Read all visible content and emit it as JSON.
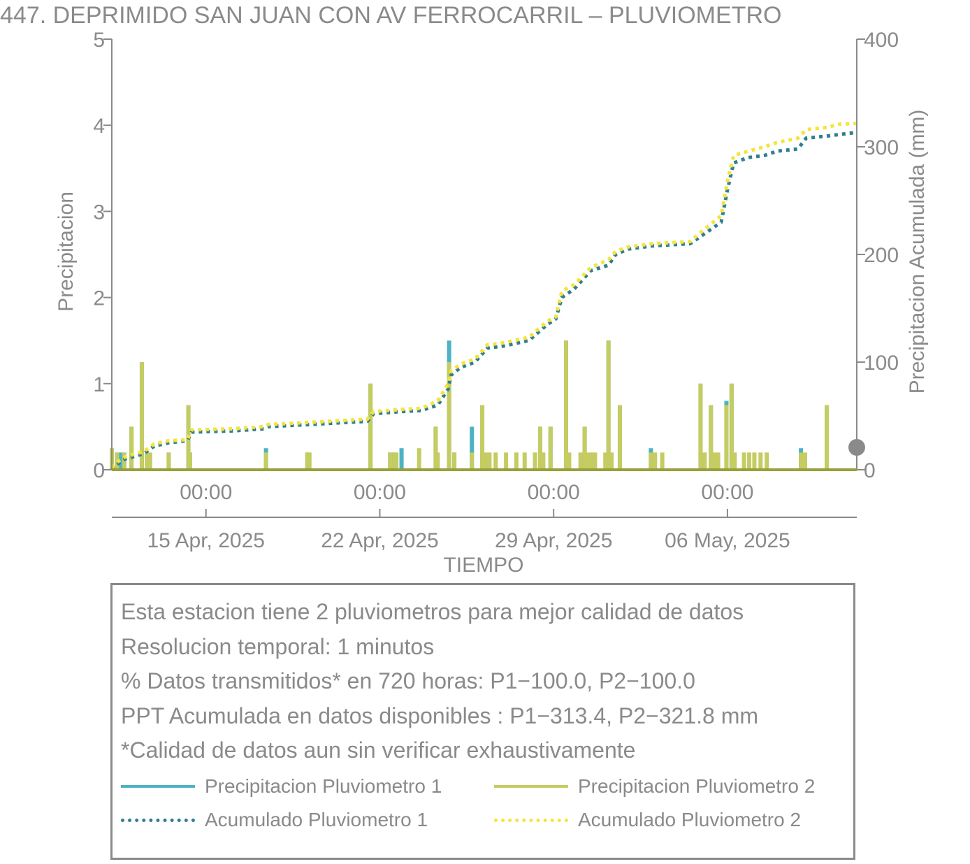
{
  "chart_data": {
    "type": "bar",
    "title": "447. DEPRIMIDO SAN JUAN CON AV FERROCARRIL – PLUVIOMETRO",
    "xlabel": "TIEMPO",
    "ylabel": "Precipitacion",
    "ylabel_right": "Precipitacion Acumulada (mm)",
    "x_range": [
      "2025-04-11T05:00",
      "2025-05-11T05:00"
    ],
    "ylim": [
      0,
      5
    ],
    "ylim_right": [
      0,
      400
    ],
    "y_ticks": [
      "0",
      "1",
      "2",
      "3",
      "4",
      "5"
    ],
    "y_right_ticks": [
      "0",
      "100",
      "200",
      "300",
      "400"
    ],
    "x_ticks_time": [
      "00:00",
      "00:00",
      "00:00",
      "00:00"
    ],
    "x_ticks_date": [
      "15 Apr, 2025",
      "22 Apr, 2025",
      "29 Apr, 2025",
      "06 May, 2025"
    ],
    "x_tick_dates": [
      "2025-04-15T00:00",
      "2025-04-22T00:00",
      "2025-04-29T00:00",
      "2025-05-06T00:00"
    ],
    "grid": false,
    "colors": {
      "p1": "#4db3c4",
      "p2": "#c4cc62",
      "acc1": "#2f7f8f",
      "acc2": "#f5e43a",
      "axis": "#8a8a8a"
    },
    "series": [
      {
        "name": "Precipitacion Pluviometro 1",
        "kind": "bar",
        "points": [
          [
            "2025-04-11T05:00",
            0.2
          ],
          [
            "2025-04-11T10:00",
            0.2
          ],
          [
            "2025-04-11T14:00",
            0.2
          ],
          [
            "2025-04-11T17:00",
            0.2
          ],
          [
            "2025-04-12T00:00",
            0.5
          ],
          [
            "2025-04-12T10:00",
            1.25
          ],
          [
            "2025-04-12T15:00",
            0.2
          ],
          [
            "2025-04-13T12:00",
            0.2
          ],
          [
            "2025-04-14T07:00",
            0.75
          ],
          [
            "2025-04-14T08:30",
            0.2
          ],
          [
            "2025-04-17T10:00",
            0.25
          ],
          [
            "2025-04-19T02:00",
            0.2
          ],
          [
            "2025-04-21T15:00",
            1.0
          ],
          [
            "2025-04-22T10:00",
            0.2
          ],
          [
            "2025-04-22T14:00",
            0.2
          ],
          [
            "2025-04-22T21:00",
            0.25
          ],
          [
            "2025-04-24T06:00",
            0.5
          ],
          [
            "2025-04-24T19:00",
            1.5
          ],
          [
            "2025-04-25T00:00",
            0.2
          ],
          [
            "2025-04-25T17:00",
            0.5
          ],
          [
            "2025-04-26T03:00",
            0.75
          ],
          [
            "2025-04-28T11:00",
            0.5
          ],
          [
            "2025-04-28T21:00",
            0.5
          ],
          [
            "2025-04-29T12:00",
            1.5
          ],
          [
            "2025-04-30T06:00",
            0.5
          ],
          [
            "2025-05-01T05:00",
            1.5
          ],
          [
            "2025-05-01T16:00",
            0.75
          ],
          [
            "2025-05-02T22:00",
            0.25
          ],
          [
            "2025-05-04T22:00",
            1.0
          ],
          [
            "2025-05-05T08:00",
            0.75
          ],
          [
            "2025-05-05T23:00",
            0.8
          ],
          [
            "2025-05-06T04:00",
            1.0
          ],
          [
            "2025-05-08T23:00",
            0.25
          ],
          [
            "2025-05-10T00:00",
            0.75
          ]
        ]
      },
      {
        "name": "Precipitacion Pluviometro 2",
        "kind": "bar",
        "points": [
          [
            "2025-04-11T05:00",
            0.25
          ],
          [
            "2025-04-11T10:00",
            0.2
          ],
          [
            "2025-04-11T17:00",
            0.2
          ],
          [
            "2025-04-12T00:00",
            0.5
          ],
          [
            "2025-04-12T10:00",
            1.25
          ],
          [
            "2025-04-12T15:00",
            0.2
          ],
          [
            "2025-04-12T18:00",
            0.2
          ],
          [
            "2025-04-13T12:00",
            0.2
          ],
          [
            "2025-04-14T07:00",
            0.75
          ],
          [
            "2025-04-14T08:30",
            0.2
          ],
          [
            "2025-04-17T10:00",
            0.2
          ],
          [
            "2025-04-19T02:00",
            0.2
          ],
          [
            "2025-04-19T04:00",
            0.2
          ],
          [
            "2025-04-21T15:00",
            1.0
          ],
          [
            "2025-04-22T10:00",
            0.2
          ],
          [
            "2025-04-22T14:00",
            0.2
          ],
          [
            "2025-04-22T16:00",
            0.2
          ],
          [
            "2025-04-23T14:00",
            0.25
          ],
          [
            "2025-04-24T06:00",
            0.5
          ],
          [
            "2025-04-24T08:00",
            0.2
          ],
          [
            "2025-04-24T19:00",
            1.25
          ],
          [
            "2025-04-25T00:00",
            0.2
          ],
          [
            "2025-04-25T17:00",
            0.2
          ],
          [
            "2025-04-26T03:00",
            0.75
          ],
          [
            "2025-04-26T06:00",
            0.2
          ],
          [
            "2025-04-26T10:00",
            0.2
          ],
          [
            "2025-04-26T16:00",
            0.2
          ],
          [
            "2025-04-27T02:00",
            0.2
          ],
          [
            "2025-04-27T12:00",
            0.2
          ],
          [
            "2025-04-27T20:00",
            0.2
          ],
          [
            "2025-04-28T06:00",
            0.2
          ],
          [
            "2025-04-28T11:00",
            0.5
          ],
          [
            "2025-04-28T14:00",
            0.2
          ],
          [
            "2025-04-28T21:00",
            0.5
          ],
          [
            "2025-04-29T12:00",
            1.5
          ],
          [
            "2025-04-29T15:00",
            0.2
          ],
          [
            "2025-04-30T02:00",
            0.2
          ],
          [
            "2025-04-30T06:00",
            0.5
          ],
          [
            "2025-04-30T09:00",
            0.2
          ],
          [
            "2025-04-30T13:00",
            0.2
          ],
          [
            "2025-04-30T16:00",
            0.2
          ],
          [
            "2025-05-01T02:00",
            0.2
          ],
          [
            "2025-05-01T05:00",
            1.5
          ],
          [
            "2025-05-01T08:00",
            0.2
          ],
          [
            "2025-05-01T16:00",
            0.75
          ],
          [
            "2025-05-02T22:00",
            0.2
          ],
          [
            "2025-05-03T02:00",
            0.2
          ],
          [
            "2025-05-03T09:00",
            0.2
          ],
          [
            "2025-05-04T22:00",
            1.0
          ],
          [
            "2025-05-05T02:00",
            0.2
          ],
          [
            "2025-05-05T08:00",
            0.75
          ],
          [
            "2025-05-05T11:00",
            0.2
          ],
          [
            "2025-05-05T15:00",
            0.2
          ],
          [
            "2025-05-05T23:00",
            0.75
          ],
          [
            "2025-05-06T04:00",
            1.0
          ],
          [
            "2025-05-06T07:00",
            0.2
          ],
          [
            "2025-05-06T16:00",
            0.2
          ],
          [
            "2025-05-06T21:00",
            0.2
          ],
          [
            "2025-05-07T02:00",
            0.2
          ],
          [
            "2025-05-07T08:00",
            0.2
          ],
          [
            "2025-05-07T14:00",
            0.2
          ],
          [
            "2025-05-08T23:00",
            0.2
          ],
          [
            "2025-05-09T03:00",
            0.2
          ],
          [
            "2025-05-10T00:00",
            0.75
          ]
        ]
      },
      {
        "name": "Acumulado Pluviometro 1",
        "kind": "line",
        "points": [
          [
            "2025-04-11T05:00",
            0
          ],
          [
            "2025-04-11T10:00",
            5
          ],
          [
            "2025-04-11T18:00",
            10
          ],
          [
            "2025-04-12T12:00",
            15
          ],
          [
            "2025-04-12T22:00",
            22
          ],
          [
            "2025-04-13T12:00",
            25
          ],
          [
            "2025-04-14T06:00",
            27
          ],
          [
            "2025-04-14T10:00",
            35
          ],
          [
            "2025-04-16T00:00",
            36
          ],
          [
            "2025-04-17T08:00",
            38
          ],
          [
            "2025-04-17T12:00",
            40
          ],
          [
            "2025-04-19T04:00",
            42
          ],
          [
            "2025-04-21T12:00",
            45
          ],
          [
            "2025-04-21T18:00",
            52
          ],
          [
            "2025-04-22T20:00",
            54
          ],
          [
            "2025-04-23T16:00",
            55
          ],
          [
            "2025-04-24T08:00",
            60
          ],
          [
            "2025-04-24T18:00",
            75
          ],
          [
            "2025-04-24T21:00",
            88
          ],
          [
            "2025-04-25T06:00",
            95
          ],
          [
            "2025-04-25T20:00",
            100
          ],
          [
            "2025-04-26T08:00",
            113
          ],
          [
            "2025-04-27T00:00",
            115
          ],
          [
            "2025-04-28T00:00",
            120
          ],
          [
            "2025-04-28T12:00",
            130
          ],
          [
            "2025-04-28T18:00",
            135
          ],
          [
            "2025-04-29T02:00",
            140
          ],
          [
            "2025-04-29T08:00",
            160
          ],
          [
            "2025-04-29T20:00",
            168
          ],
          [
            "2025-04-30T12:00",
            185
          ],
          [
            "2025-05-01T05:00",
            190
          ],
          [
            "2025-05-01T12:00",
            200
          ],
          [
            "2025-05-02T00:00",
            205
          ],
          [
            "2025-05-03T00:00",
            208
          ],
          [
            "2025-05-04T12:00",
            210
          ],
          [
            "2025-05-05T00:00",
            218
          ],
          [
            "2025-05-05T18:00",
            230
          ],
          [
            "2025-05-06T00:00",
            260
          ],
          [
            "2025-05-06T06:00",
            285
          ],
          [
            "2025-05-06T20:00",
            290
          ],
          [
            "2025-05-07T12:00",
            292
          ],
          [
            "2025-05-08T00:00",
            296
          ],
          [
            "2025-05-08T20:00",
            298
          ],
          [
            "2025-05-09T04:00",
            308
          ],
          [
            "2025-05-10T00:00",
            310
          ],
          [
            "2025-05-11T05:00",
            313.4
          ]
        ]
      },
      {
        "name": "Acumulado Pluviometro 2",
        "kind": "line",
        "points": [
          [
            "2025-04-11T05:00",
            2
          ],
          [
            "2025-04-11T10:00",
            7
          ],
          [
            "2025-04-11T18:00",
            12
          ],
          [
            "2025-04-12T12:00",
            17
          ],
          [
            "2025-04-12T22:00",
            24
          ],
          [
            "2025-04-13T12:00",
            27
          ],
          [
            "2025-04-14T06:00",
            28
          ],
          [
            "2025-04-14T10:00",
            37
          ],
          [
            "2025-04-16T00:00",
            38
          ],
          [
            "2025-04-17T08:00",
            40
          ],
          [
            "2025-04-17T12:00",
            42
          ],
          [
            "2025-04-19T04:00",
            44
          ],
          [
            "2025-04-21T12:00",
            47
          ],
          [
            "2025-04-21T18:00",
            54
          ],
          [
            "2025-04-22T20:00",
            56
          ],
          [
            "2025-04-23T16:00",
            57
          ],
          [
            "2025-04-24T08:00",
            64
          ],
          [
            "2025-04-24T18:00",
            80
          ],
          [
            "2025-04-24T21:00",
            92
          ],
          [
            "2025-04-25T06:00",
            98
          ],
          [
            "2025-04-25T20:00",
            103
          ],
          [
            "2025-04-26T08:00",
            116
          ],
          [
            "2025-04-27T00:00",
            118
          ],
          [
            "2025-04-28T00:00",
            123
          ],
          [
            "2025-04-28T12:00",
            133
          ],
          [
            "2025-04-28T18:00",
            138
          ],
          [
            "2025-04-29T02:00",
            142
          ],
          [
            "2025-04-29T08:00",
            166
          ],
          [
            "2025-04-29T20:00",
            172
          ],
          [
            "2025-04-30T12:00",
            188
          ],
          [
            "2025-05-01T05:00",
            195
          ],
          [
            "2025-05-01T12:00",
            203
          ],
          [
            "2025-05-02T00:00",
            207
          ],
          [
            "2025-05-03T00:00",
            210
          ],
          [
            "2025-05-04T12:00",
            212
          ],
          [
            "2025-05-05T00:00",
            222
          ],
          [
            "2025-05-05T18:00",
            236
          ],
          [
            "2025-05-06T00:00",
            268
          ],
          [
            "2025-05-06T06:00",
            292
          ],
          [
            "2025-05-06T20:00",
            296
          ],
          [
            "2025-05-07T12:00",
            300
          ],
          [
            "2025-05-08T00:00",
            304
          ],
          [
            "2025-05-08T20:00",
            308
          ],
          [
            "2025-05-09T04:00",
            316
          ],
          [
            "2025-05-10T00:00",
            318
          ],
          [
            "2025-05-10T12:00",
            321
          ],
          [
            "2025-05-11T05:00",
            321.8
          ]
        ]
      }
    ]
  },
  "info": {
    "lines": [
      "Esta estacion tiene 2 pluviometros para mejor calidad de datos",
      "Resolucion temporal: 1 minutos",
      "% Datos transmitidos* en 720 horas: P1−100.0, P2−100.0",
      "PPT Acumulada en datos disponibles : P1−313.4, P2−321.8 mm",
      "*Calidad de datos aun sin verificar exhaustivamente"
    ]
  }
}
